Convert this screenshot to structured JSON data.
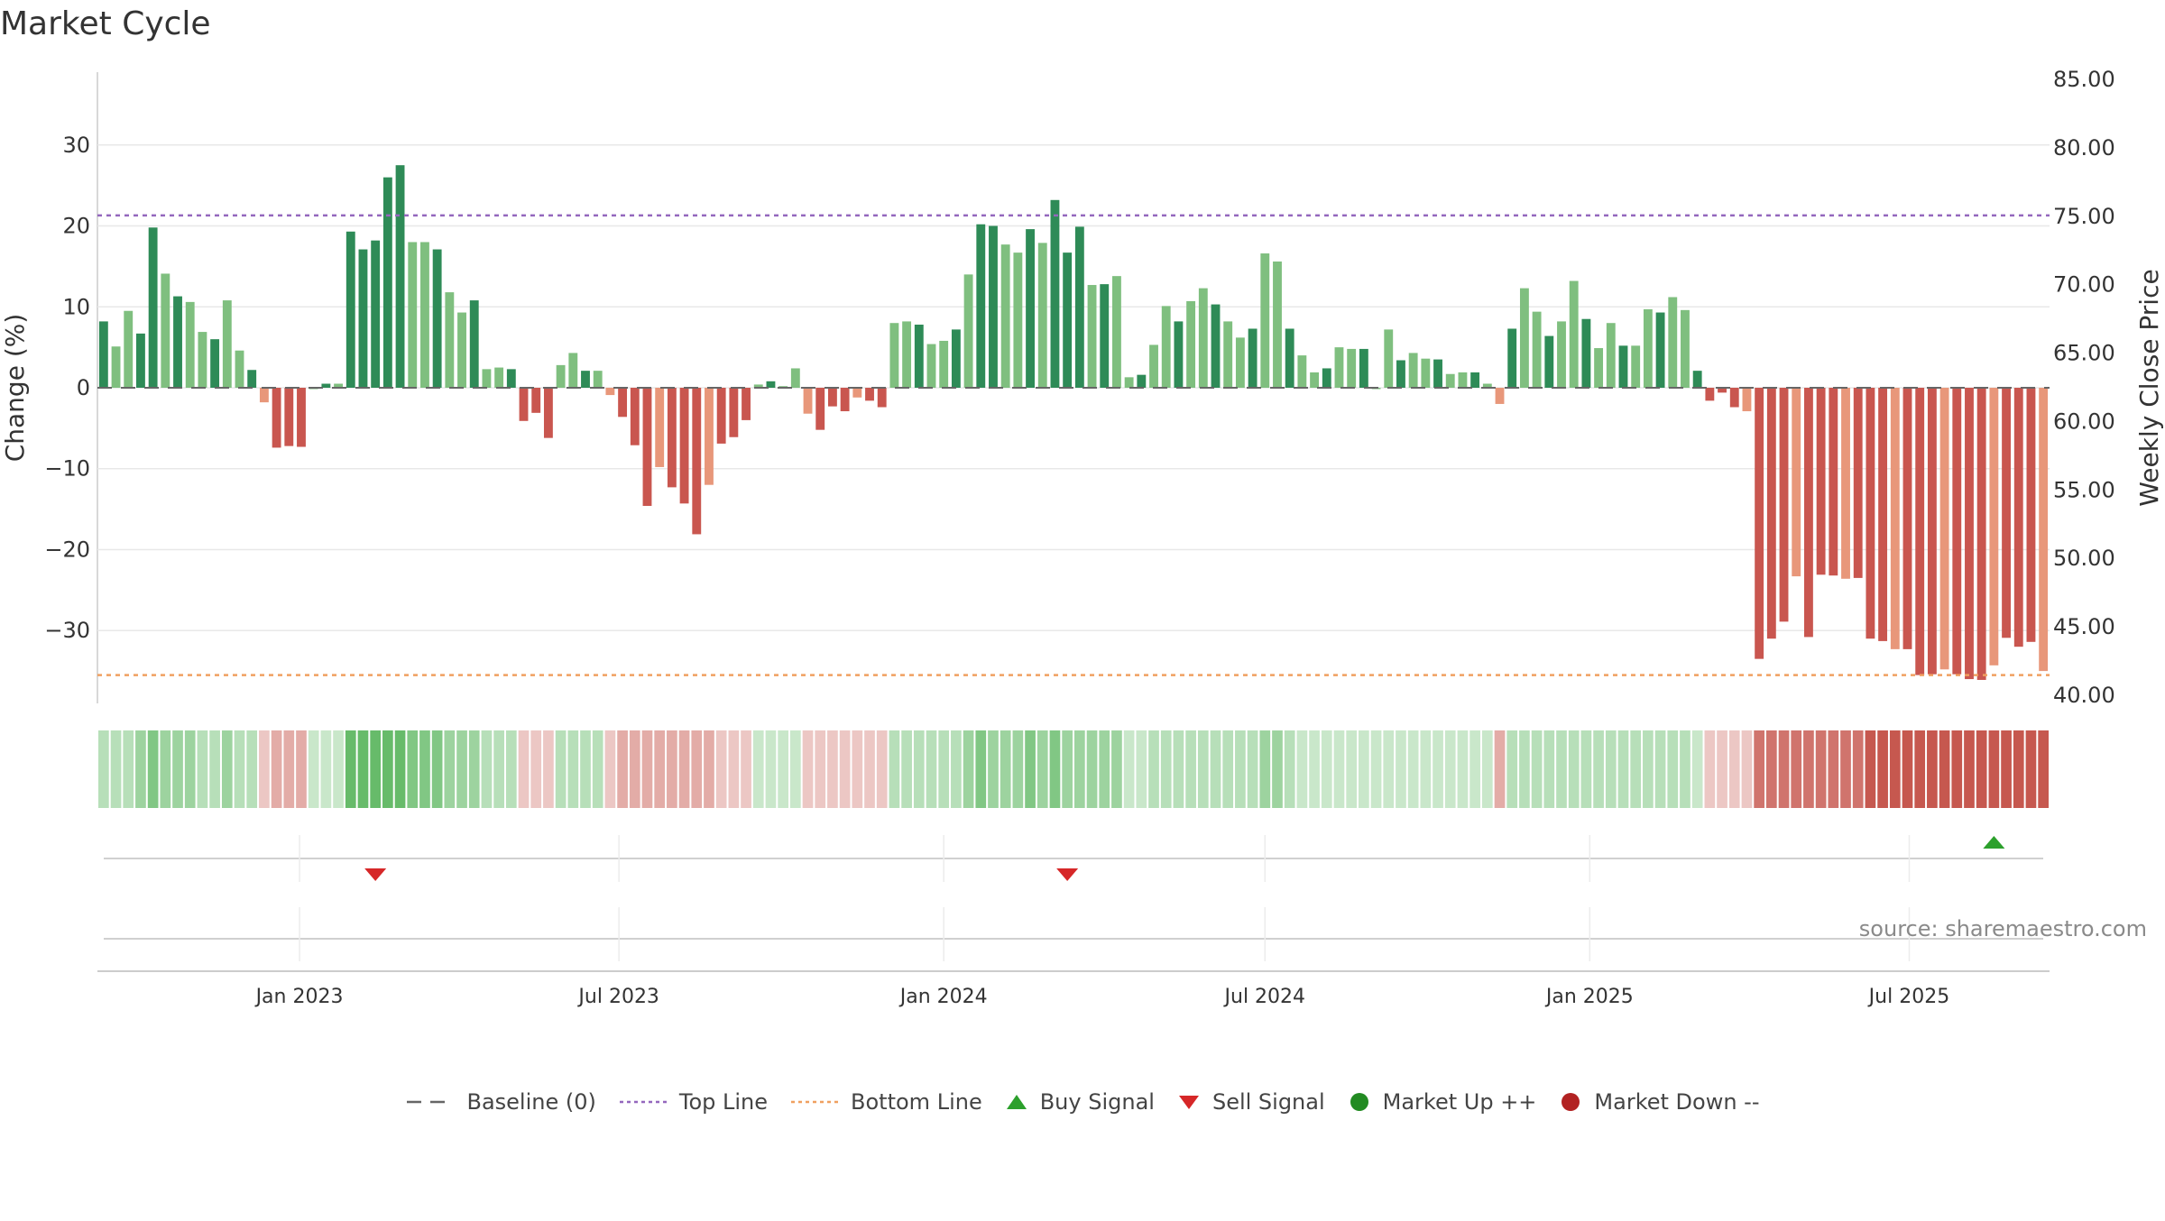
{
  "title": "Market Cycle",
  "source": "source: sharemaestro.com",
  "legend": [
    {
      "label": "Baseline (0)",
      "icon": "baseline-dash-icon",
      "color": "#666666"
    },
    {
      "label": "Top Line",
      "icon": "top-line-dotted-icon",
      "color": "#9467bd"
    },
    {
      "label": "Bottom Line",
      "icon": "bottom-line-dotted-icon",
      "color": "#f0a060"
    },
    {
      "label": "Buy Signal",
      "icon": "buy-signal-triangle-up-icon",
      "color": "#2ca02c"
    },
    {
      "label": "Sell Signal",
      "icon": "sell-signal-triangle-down-icon",
      "color": "#d62728"
    },
    {
      "label": "Market Up ++",
      "icon": "market-up-circle-icon",
      "color": "#228b22"
    },
    {
      "label": "Market Down --",
      "icon": "market-down-circle-icon",
      "color": "#b22222"
    }
  ],
  "chart_data": {
    "type": "bar",
    "title": "Market Cycle",
    "ylabel_left": "Change (%)",
    "ylabel_right": "Weekly Close Price",
    "ylim_left": [
      -39,
      39
    ],
    "yticks_left": [
      "30",
      "20",
      "10",
      "0",
      "−10",
      "−20",
      "−30"
    ],
    "ylim_right": [
      40,
      85
    ],
    "yticks_right": [
      "85.00",
      "80.00",
      "75.00",
      "70.00",
      "65.00",
      "60.00",
      "55.00",
      "50.00",
      "45.00",
      "40.00"
    ],
    "x_start_date": "2022-09-12",
    "x_tick_labels": [
      "Jan 2023",
      "Jul 2023",
      "Jan 2024",
      "Jul 2024",
      "Jan 2025",
      "Jul 2025"
    ],
    "x_tick_dates": [
      "2023-01-01",
      "2023-07-01",
      "2024-01-01",
      "2024-07-01",
      "2025-01-01",
      "2025-07-01"
    ],
    "top_line": 21.3,
    "bottom_line": -35.5,
    "baseline": 0,
    "grid": true,
    "legend_position": "bottom-center",
    "values": [
      8.2,
      5.1,
      9.5,
      6.7,
      19.8,
      14.1,
      11.3,
      10.6,
      6.9,
      6.0,
      10.8,
      4.6,
      2.2,
      -1.8,
      -7.4,
      -7.2,
      -7.3,
      0.0,
      0.5,
      0.5,
      19.3,
      17.1,
      18.2,
      26.0,
      27.5,
      18.0,
      18.0,
      17.1,
      11.8,
      9.3,
      10.8,
      2.3,
      2.5,
      2.3,
      -4.1,
      -3.1,
      -6.2,
      2.8,
      4.3,
      2.1,
      2.1,
      -0.9,
      -3.6,
      -7.1,
      -14.6,
      -9.8,
      -12.3,
      -14.3,
      -18.1,
      -12.0,
      -6.9,
      -6.1,
      -4.0,
      0.4,
      0.8,
      0.2,
      2.4,
      -3.2,
      -5.2,
      -2.3,
      -2.9,
      -1.2,
      -1.6,
      -2.4,
      8.0,
      8.2,
      7.8,
      5.4,
      5.8,
      7.2,
      14.0,
      20.2,
      20.0,
      17.7,
      16.7,
      19.6,
      17.9,
      23.2,
      16.7,
      19.9,
      12.7,
      12.8,
      13.8,
      1.3,
      1.6,
      5.3,
      10.1,
      8.2,
      10.7,
      12.3,
      10.3,
      8.2,
      6.2,
      7.3,
      16.6,
      15.6,
      7.3,
      4.0,
      1.9,
      2.4,
      5.0,
      4.8,
      4.8,
      0.0,
      7.2,
      3.4,
      4.3,
      3.6,
      3.5,
      1.7,
      1.9,
      1.9,
      0.5,
      -2.0,
      7.3,
      12.3,
      9.4,
      6.4,
      8.2,
      13.2,
      8.5,
      4.9,
      8.0,
      5.2,
      5.2,
      9.7,
      9.3,
      11.2,
      9.6,
      2.1,
      -1.6,
      -0.6,
      -2.4,
      -2.9,
      -33.5,
      -31.0,
      -28.9,
      -23.3,
      -30.8,
      -23.1,
      -23.2,
      -23.6,
      -23.5,
      -31.0,
      -31.3,
      -32.3,
      -32.3,
      -35.5,
      -35.4,
      -34.8,
      -35.4,
      -36.0,
      -36.1,
      -34.3,
      -30.9,
      -32.0,
      -31.4,
      -35.0
    ],
    "regime_levels": [
      2,
      2,
      2,
      3,
      4,
      3,
      3,
      3,
      2,
      2,
      3,
      2,
      2,
      -1,
      -2,
      -2,
      -2,
      1,
      1,
      1,
      5,
      5,
      5,
      5,
      5,
      4,
      4,
      4,
      3,
      3,
      3,
      2,
      2,
      2,
      -1,
      -1,
      -1,
      2,
      2,
      2,
      2,
      -1,
      -2,
      -2,
      -2,
      -2,
      -2,
      -2,
      -2,
      -2,
      -1,
      -1,
      -1,
      1,
      1,
      1,
      1,
      -1,
      -1,
      -1,
      -1,
      -1,
      -1,
      -1,
      2,
      2,
      2,
      2,
      2,
      2,
      3,
      4,
      3,
      3,
      3,
      4,
      3,
      4,
      3,
      3,
      3,
      3,
      3,
      1,
      1,
      2,
      2,
      2,
      2,
      2,
      2,
      2,
      2,
      2,
      3,
      3,
      2,
      1,
      1,
      1,
      1,
      1,
      1,
      1,
      1,
      1,
      1,
      1,
      1,
      1,
      1,
      1,
      1,
      -2,
      2,
      2,
      2,
      2,
      2,
      2,
      2,
      2,
      2,
      2,
      2,
      2,
      2,
      2,
      2,
      1,
      -1,
      -1,
      -1,
      -1,
      -4,
      -4,
      -4,
      -4,
      -4,
      -4,
      -4,
      -4,
      -4,
      -5,
      -5,
      -5,
      -5,
      -5,
      -5,
      -5,
      -5,
      -5,
      -5,
      -5,
      -5,
      -5,
      -5,
      -5
    ],
    "buy_signals": [
      "2025-08-18"
    ],
    "sell_signals": [
      "2023-02-13",
      "2024-03-11"
    ]
  }
}
